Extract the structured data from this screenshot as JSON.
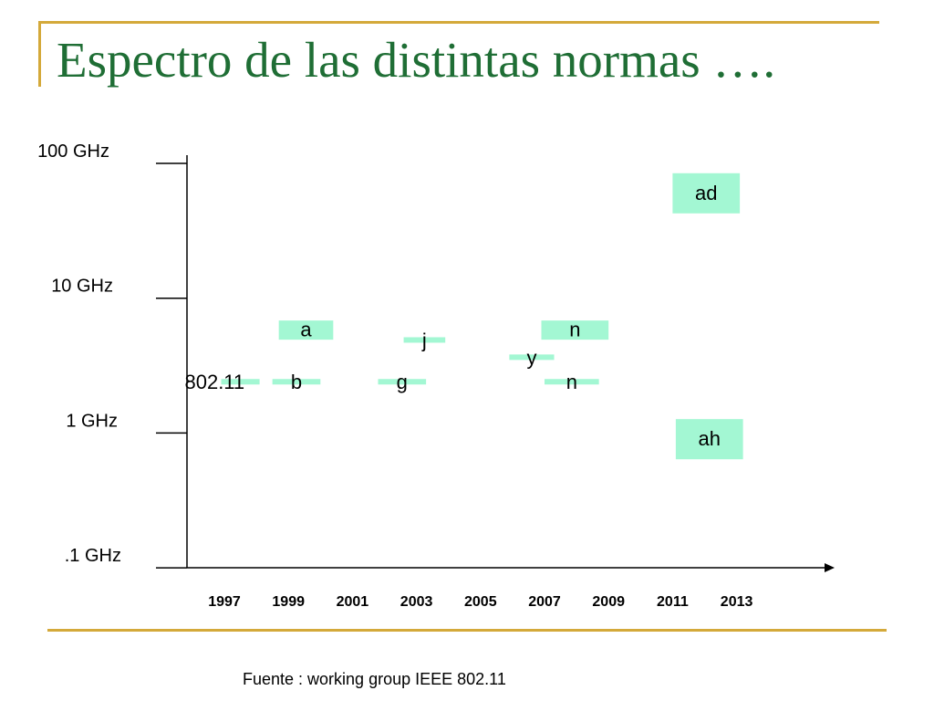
{
  "slide": {
    "title": "Espectro de las distintas normas ….",
    "source": "Fuente : working group IEEE 802.11"
  },
  "chart_data": {
    "type": "timeline-range",
    "y_scale": "log",
    "y_ticks": [
      {
        "label": "100 GHz",
        "value": 100
      },
      {
        "label": "10 GHz",
        "value": 10
      },
      {
        "label": "1 GHz",
        "value": 1
      },
      {
        "label": ".1 GHz",
        "value": 0.1
      }
    ],
    "x_ticks": [
      "1997",
      "1999",
      "2001",
      "2003",
      "2005",
      "2007",
      "2009",
      "2011",
      "2013"
    ],
    "standards": [
      {
        "label": "802.11",
        "style": "bar",
        "x0": 1996.9,
        "x1": 1998.1,
        "y": 2.4,
        "label_side": "left"
      },
      {
        "label": "b",
        "style": "bar",
        "x0": 1998.5,
        "x1": 2000.0,
        "y": 2.4,
        "label_side": "center"
      },
      {
        "label": "g",
        "style": "bar",
        "x0": 2001.8,
        "x1": 2003.3,
        "y": 2.4,
        "label_side": "center"
      },
      {
        "label": "j",
        "style": "bar",
        "x0": 2002.6,
        "x1": 2003.9,
        "y": 4.9,
        "label_side": "center"
      },
      {
        "label": "y",
        "style": "bar",
        "x0": 2005.9,
        "x1": 2007.3,
        "y": 3.65,
        "label_side": "center"
      },
      {
        "label": "n",
        "style": "bar",
        "x0": 2007.0,
        "x1": 2008.7,
        "y": 2.4,
        "label_side": "center"
      },
      {
        "label": "a",
        "style": "box",
        "x0": 1998.7,
        "x1": 2000.4,
        "y": 5.8,
        "label_side": "center"
      },
      {
        "label": "n",
        "style": "box",
        "x0": 2006.9,
        "x1": 2009.0,
        "y": 5.8,
        "label_side": "center"
      },
      {
        "label": "ad",
        "style": "box",
        "x0": 2011.0,
        "x1": 2013.1,
        "y": 60,
        "label_side": "center"
      },
      {
        "label": "ah",
        "style": "box",
        "x0": 2011.1,
        "x1": 2013.2,
        "y": 0.9,
        "label_side": "center"
      }
    ]
  }
}
